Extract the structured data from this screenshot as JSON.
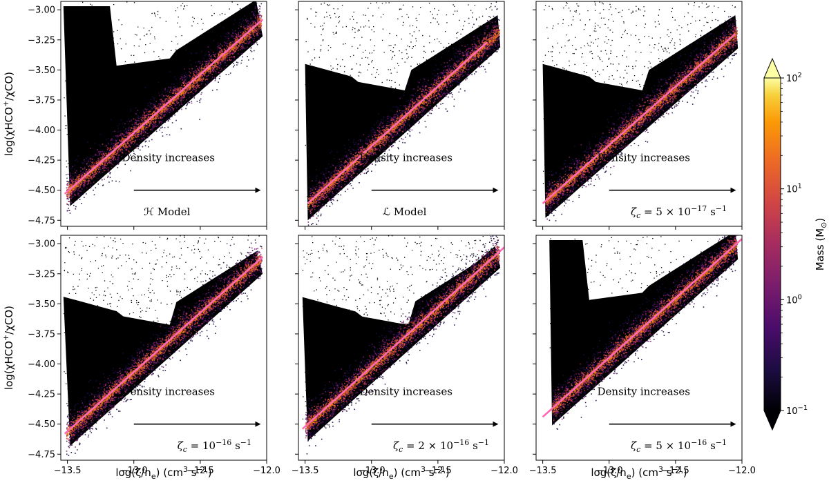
{
  "chart_data": {
    "type": "scatter",
    "figure_description_free": true,
    "shared_x": {
      "label": "log(ζ/n_e) (cm³ s⁻¹)",
      "label_parts": {
        "main": "log(ζ/n",
        "sub": "e",
        "rest": ") (cm",
        "sup1": "3",
        "rest2": " s",
        "sup2": "−1",
        "end": ")"
      },
      "lim": [
        -13.55,
        -12.0
      ],
      "ticks": [
        -13.5,
        -13.0,
        -12.5,
        -12.0
      ],
      "tick_labels": [
        "−13.5",
        "−13.0",
        "−12.5",
        "−12.0"
      ]
    },
    "shared_y": {
      "label": "log(χHCO⁺/χCO)",
      "label_parts": {
        "main": "log(χHCO",
        "sup": "+",
        "rest": "/χCO)"
      },
      "lim": [
        -4.8,
        -2.93
      ],
      "ticks": [
        -3.0,
        -3.25,
        -3.5,
        -3.75,
        -4.0,
        -4.25,
        -4.5,
        -4.75
      ],
      "tick_labels": [
        "−3.00",
        "−3.25",
        "−3.50",
        "−3.75",
        "−4.00",
        "−4.25",
        "−4.50",
        "−4.75"
      ]
    },
    "annotation": "Density increases",
    "arrow": {
      "x_start": -13.0,
      "x_end": -12.05,
      "y": -4.5
    },
    "panels": [
      {
        "id": "H",
        "label": "ℋ Model",
        "fit": {
          "x": [
            -13.52,
            -12.03
          ],
          "y": [
            -4.53,
            -3.08
          ]
        },
        "min_x": -13.53,
        "halo": "full"
      },
      {
        "id": "L",
        "label": "ℒ Model",
        "fit": {
          "x": [
            -13.48,
            -12.13
          ],
          "y": [
            -4.61,
            -3.27
          ]
        },
        "min_x": -13.5,
        "halo": "sparse"
      },
      {
        "id": "z5e-17",
        "label": "ζ_c = 5 × 10⁻¹⁷ s⁻¹",
        "label_parts": {
          "pre": "ζ",
          "sub": "c",
          "mid": " = 5 × 10",
          "sup": "−17",
          "post": " s",
          "sup2": "−1"
        },
        "fit": {
          "x": [
            -13.5,
            -12.05
          ],
          "y": [
            -4.61,
            -3.2
          ]
        },
        "min_x": -13.5,
        "halo": "sparse"
      },
      {
        "id": "z1e-16",
        "label": "ζ_c = 10⁻¹⁶ s⁻¹",
        "label_parts": {
          "pre": "ζ",
          "sub": "c",
          "mid": " = 10",
          "sup": "−16",
          "post": " s",
          "sup2": "−1"
        },
        "fit": {
          "x": [
            -13.52,
            -12.03
          ],
          "y": [
            -4.58,
            -3.11
          ]
        },
        "min_x": -13.53,
        "halo": "sparse"
      },
      {
        "id": "z2e-16",
        "label": "ζ_c = 2 × 10⁻¹⁶ s⁻¹",
        "label_parts": {
          "pre": "ζ",
          "sub": "c",
          "mid": " = 2 × 10",
          "sup": "−16",
          "post": " s",
          "sup2": "−1"
        },
        "fit": {
          "x": [
            -13.52,
            -12.0
          ],
          "y": [
            -4.54,
            -3.03
          ]
        },
        "min_x": -13.52,
        "halo": "sparse"
      },
      {
        "id": "z5e-16",
        "label": "ζ_c = 5 × 10⁻¹⁶ s⁻¹",
        "label_parts": {
          "pre": "ζ",
          "sub": "c",
          "mid": " = 5 × 10",
          "sup": "−16",
          "post": " s",
          "sup2": "−1"
        },
        "fit": {
          "x": [
            -13.5,
            -12.0
          ],
          "y": [
            -4.44,
            -2.96
          ]
        },
        "min_x": -13.45,
        "halo": "full"
      }
    ],
    "colorbar": {
      "label": "Mass (M⊙)",
      "label_parts": {
        "main": "Mass (M",
        "sub": "⊙",
        "end": ")"
      },
      "scale": "log",
      "range": [
        0.1,
        100
      ],
      "extend": "both",
      "ticks": [
        0.1,
        1,
        10,
        100
      ],
      "tick_labels": [
        {
          "base": "10",
          "exp": "−1"
        },
        {
          "base": "10",
          "exp": "0"
        },
        {
          "base": "10",
          "exp": "1"
        },
        {
          "base": "10",
          "exp": "2"
        }
      ],
      "colormap": "inferno"
    },
    "fit_color": "#ff69b4"
  }
}
